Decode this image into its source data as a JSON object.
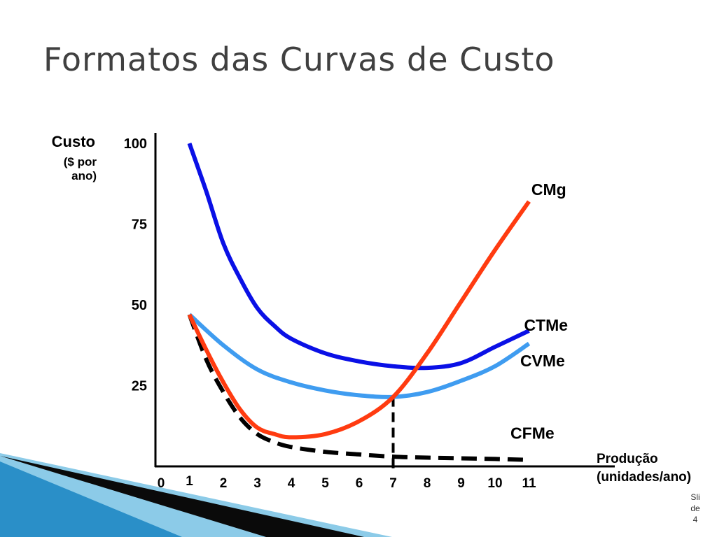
{
  "slide": {
    "title": "Formatos das Curvas de Custo",
    "slide_number_lines": [
      "Sli",
      "de",
      "4"
    ]
  },
  "colors": {
    "CMg": "#ff3b10",
    "CTMe": "#0a10e6",
    "CVMe": "#3f9cf0",
    "CFMe": "#000000",
    "axis": "#000000",
    "title": "#404040",
    "deco_dark": "#0a0a0a",
    "deco_light": "#8ccbe8",
    "deco_blue": "#2a8fc8"
  },
  "chart_data": {
    "type": "line",
    "title": "",
    "ylabel": "Custo",
    "ylabel_sub": [
      "($ por",
      "ano)"
    ],
    "xlabel_lines": [
      "Produção",
      "(unidades/ano)"
    ],
    "xlim": [
      0,
      12
    ],
    "ylim": [
      0,
      110
    ],
    "x_ticks": [
      {
        "v": 0,
        "label": "0"
      },
      {
        "v": 1,
        "label": "1"
      },
      {
        "v": 2,
        "label": "2"
      },
      {
        "v": 3,
        "label": "3"
      },
      {
        "v": 4,
        "label": "4"
      },
      {
        "v": 5,
        "label": "5"
      },
      {
        "v": 6,
        "label": "6"
      },
      {
        "v": 7,
        "label": "7"
      },
      {
        "v": 8,
        "label": "8"
      },
      {
        "v": 9,
        "label": "9"
      },
      {
        "v": 10,
        "label": "10"
      },
      {
        "v": 11,
        "label": "11"
      }
    ],
    "y_ticks": [
      {
        "v": 100,
        "label": "100"
      },
      {
        "v": 75,
        "label": "75"
      },
      {
        "v": 50,
        "label": "50"
      },
      {
        "v": 25,
        "label": "25"
      }
    ],
    "series": [
      {
        "key": "CTMe",
        "name": "CTMe",
        "style": "solid",
        "points": [
          [
            1,
            100
          ],
          [
            1.5,
            85
          ],
          [
            2,
            69
          ],
          [
            2.5,
            58
          ],
          [
            3,
            49
          ],
          [
            3.5,
            43.5
          ],
          [
            4,
            39.5
          ],
          [
            5,
            35
          ],
          [
            6,
            32.5
          ],
          [
            7,
            31
          ],
          [
            8,
            30.5
          ],
          [
            9,
            32
          ],
          [
            10,
            37
          ],
          [
            11,
            42
          ]
        ]
      },
      {
        "key": "CVMe",
        "name": "CVMe",
        "style": "solid",
        "points": [
          [
            1,
            47
          ],
          [
            2,
            37.5
          ],
          [
            3,
            30
          ],
          [
            4,
            26
          ],
          [
            5,
            23.5
          ],
          [
            6,
            22
          ],
          [
            7,
            21.5
          ],
          [
            8,
            23
          ],
          [
            9,
            26.5
          ],
          [
            10,
            31
          ],
          [
            11,
            38
          ]
        ]
      },
      {
        "key": "CMg",
        "name": "CMg",
        "style": "solid",
        "points": [
          [
            1,
            47
          ],
          [
            1.5,
            36
          ],
          [
            2,
            26
          ],
          [
            2.5,
            17.5
          ],
          [
            3,
            12
          ],
          [
            3.5,
            10
          ],
          [
            4,
            9
          ],
          [
            5,
            10
          ],
          [
            6,
            14
          ],
          [
            7,
            21.5
          ],
          [
            8,
            35
          ],
          [
            9,
            51
          ],
          [
            10,
            67
          ],
          [
            11,
            82
          ]
        ]
      },
      {
        "key": "CFMe",
        "name": "CFMe",
        "style": "dashed",
        "points": [
          [
            1,
            47
          ],
          [
            1.5,
            33
          ],
          [
            2,
            23
          ],
          [
            2.5,
            15
          ],
          [
            3,
            10
          ],
          [
            3.5,
            7.5
          ],
          [
            4,
            6
          ],
          [
            5,
            4.5
          ],
          [
            6,
            3.7
          ],
          [
            7,
            3
          ],
          [
            8,
            2.7
          ],
          [
            9,
            2.5
          ],
          [
            10,
            2.3
          ],
          [
            11,
            2
          ]
        ]
      }
    ],
    "series_labels": [
      {
        "key": "CMg",
        "text": "CMg",
        "at": [
          11.5,
          84
        ]
      },
      {
        "key": "CTMe",
        "text": "CTMe",
        "at": [
          11.5,
          42
        ]
      },
      {
        "key": "CVMe",
        "text": "CVMe",
        "at": [
          11.4,
          31
        ]
      },
      {
        "key": "CFMe",
        "text": "CFMe",
        "at": [
          11.1,
          8.5
        ]
      }
    ],
    "reference_line": {
      "x": 7,
      "y_top": 21.5,
      "style": "dashed"
    }
  }
}
